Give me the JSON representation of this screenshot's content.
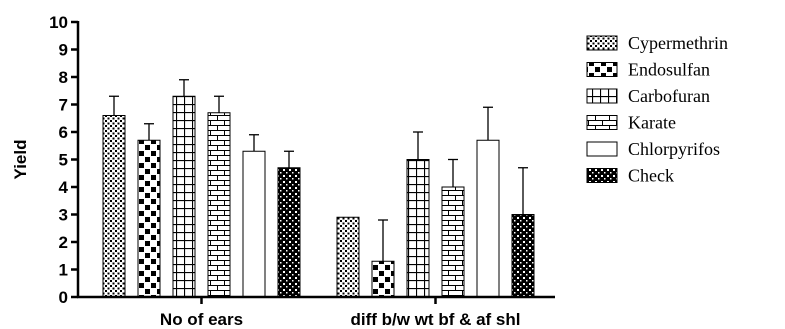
{
  "chart_data": {
    "type": "bar",
    "ylabel": "Yield",
    "xlabel": "",
    "ylim": [
      0,
      10
    ],
    "yticks": [
      0,
      1,
      2,
      3,
      4,
      5,
      6,
      7,
      8,
      9,
      10
    ],
    "categories": [
      "No of ears",
      "diff b/w wt bf & af shl"
    ],
    "series": [
      {
        "name": "Cypermethrin",
        "pattern": "dots",
        "values": [
          6.6,
          2.9
        ],
        "errors": [
          0.7,
          0
        ]
      },
      {
        "name": "Endosulfan",
        "pattern": "checker",
        "values": [
          5.7,
          1.3
        ],
        "errors": [
          0.6,
          1.5
        ]
      },
      {
        "name": "Carbofuran",
        "pattern": "grid",
        "values": [
          7.3,
          5.0
        ],
        "errors": [
          0.6,
          1.0
        ]
      },
      {
        "name": "Karate",
        "pattern": "bricks",
        "values": [
          6.7,
          4.0
        ],
        "errors": [
          0.6,
          1.0
        ]
      },
      {
        "name": "Chlorpyrifos",
        "pattern": "empty",
        "values": [
          5.3,
          5.7
        ],
        "errors": [
          0.6,
          1.2
        ]
      },
      {
        "name": "Check",
        "pattern": "dense",
        "values": [
          4.7,
          3.0
        ],
        "errors": [
          0.6,
          1.7
        ]
      }
    ],
    "legend_position": "right",
    "grid": false
  }
}
